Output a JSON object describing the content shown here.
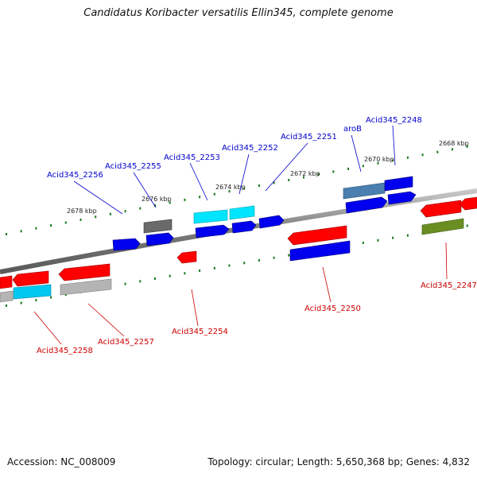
{
  "title": "Candidatus Koribacter versatilis Ellin345, complete genome",
  "footer": {
    "accession": "Accession: NC_008009",
    "summary": "Topology: circular; Length: 5,650,368 bp; Genes: 4,832"
  },
  "colors": {
    "backbone": "#808080",
    "tick": "#1a7a1a",
    "forward_label": "#0000cc",
    "reverse_label": "#cc0000",
    "red": "#ff0000",
    "blue": "#0000ff",
    "cyan": "#00e5ff",
    "gray": "#b4b4b4",
    "dark_gray": "#6a6a6a",
    "steel_blue": "#4a7fb0",
    "olive": "#6b8e23"
  },
  "kbp_labels": [
    "2678 kbp",
    "2676 kbp",
    "2674 kbp",
    "2672 kbp",
    "2670 kbp",
    "2668 kbp"
  ],
  "forward_labels": [
    "Acid345_2256",
    "Acid345_2255",
    "Acid345_2253",
    "Acid345_2252",
    "Acid345_2251",
    "aroB",
    "Acid345_2248"
  ],
  "reverse_labels": [
    "Acid345_2258",
    "Acid345_2257",
    "Acid345_2254",
    "Acid345_2250",
    "Acid345_2247"
  ]
}
